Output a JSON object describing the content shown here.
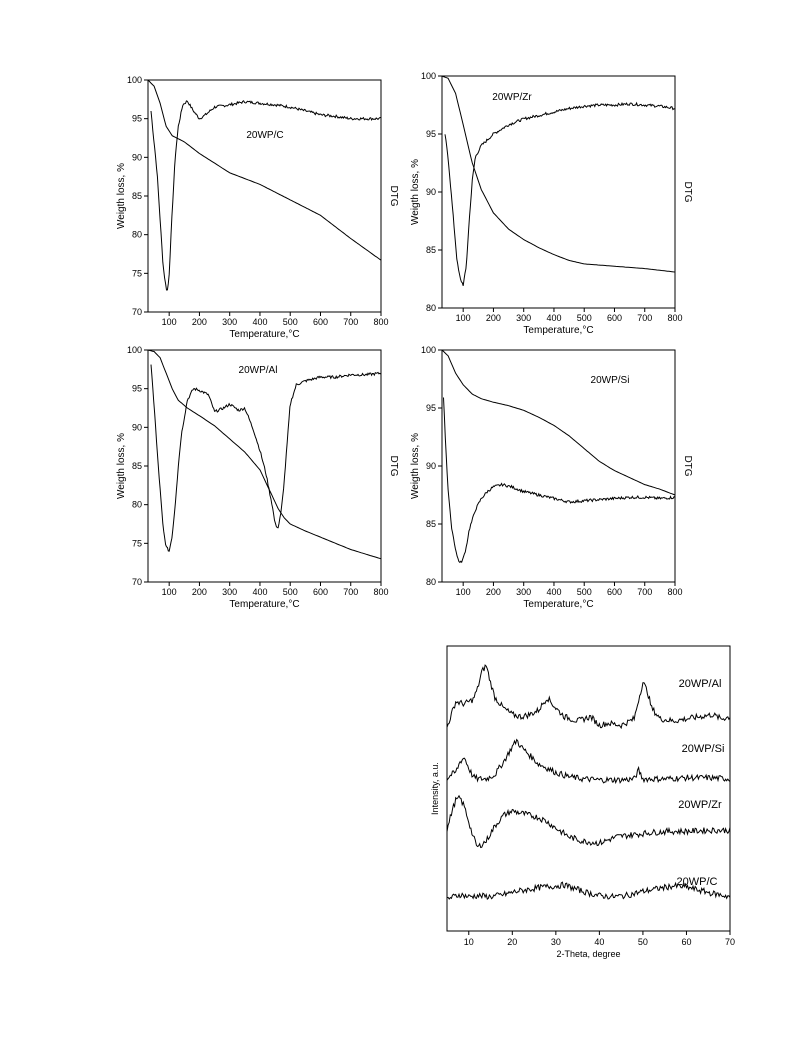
{
  "chart_data": [
    {
      "type": "line",
      "title": "20WP/C",
      "xlabel": "Temperature,°C",
      "ylabel": "Weigth loss, %",
      "y2label": "DTG",
      "xlim": [
        30,
        800
      ],
      "ylim": [
        70,
        100
      ],
      "xticks": [
        100,
        200,
        300,
        400,
        500,
        600,
        700,
        800
      ],
      "yticks": [
        70,
        75,
        80,
        85,
        90,
        95,
        100
      ],
      "series": [
        {
          "kind": "tg",
          "x": [
            30,
            50,
            70,
            90,
            110,
            150,
            200,
            300,
            400,
            500,
            600,
            700,
            800
          ],
          "y": [
            100,
            99.2,
            97,
            94,
            92.8,
            92,
            90.5,
            88,
            86.5,
            84.5,
            82.5,
            79.5,
            76.7
          ]
        },
        {
          "kind": "dtg",
          "x": [
            40,
            50,
            60,
            70,
            80,
            90,
            95,
            100,
            110,
            120,
            130,
            145,
            160,
            180,
            200,
            220,
            250,
            300,
            350,
            400,
            450,
            500,
            550,
            600,
            650,
            700,
            750,
            800
          ],
          "y": [
            96,
            92,
            88,
            82,
            76,
            73,
            72.8,
            75,
            83,
            90,
            94,
            96.8,
            97.3,
            96,
            95,
            95.5,
            96.5,
            96.8,
            97.2,
            97,
            96.8,
            96.5,
            96,
            95.5,
            95.3,
            95,
            95,
            95
          ]
        }
      ]
    },
    {
      "type": "line",
      "title": "20WP/Zr",
      "xlabel": "Temperature,°C",
      "ylabel": "Weigth loss, %",
      "y2label": "DTG",
      "xlim": [
        30,
        800
      ],
      "ylim": [
        80,
        100
      ],
      "xticks": [
        100,
        200,
        300,
        400,
        500,
        600,
        700,
        800
      ],
      "yticks": [
        80,
        85,
        90,
        95,
        100
      ],
      "series": [
        {
          "kind": "tg",
          "x": [
            30,
            50,
            75,
            100,
            130,
            160,
            200,
            250,
            300,
            350,
            400,
            450,
            500,
            600,
            700,
            800
          ],
          "y": [
            100,
            99.8,
            98.5,
            95.8,
            92.5,
            90.2,
            88.2,
            86.8,
            85.9,
            85.2,
            84.6,
            84.1,
            83.8,
            83.6,
            83.4,
            83.1
          ]
        },
        {
          "kind": "dtg",
          "x": [
            40,
            50,
            60,
            70,
            80,
            90,
            100,
            110,
            120,
            130,
            140,
            160,
            180,
            200,
            250,
            300,
            350,
            400,
            450,
            500,
            550,
            600,
            650,
            700,
            750,
            800
          ],
          "y": [
            95,
            93,
            90,
            87,
            84,
            82.5,
            82,
            83.5,
            87.5,
            91,
            93,
            94,
            94.5,
            95,
            95.8,
            96.3,
            96.6,
            96.9,
            97.2,
            97.4,
            97.5,
            97.5,
            97.6,
            97.5,
            97.4,
            97.2
          ]
        }
      ]
    },
    {
      "type": "line",
      "title": "20WP/Al",
      "xlabel": "Temperature,°C",
      "ylabel": "Weigth loss, %",
      "y2label": "DTG",
      "xlim": [
        30,
        800
      ],
      "ylim": [
        70,
        100
      ],
      "xticks": [
        100,
        200,
        300,
        400,
        500,
        600,
        700,
        800
      ],
      "yticks": [
        70,
        75,
        80,
        85,
        90,
        95,
        100
      ],
      "series": [
        {
          "kind": "tg",
          "x": [
            30,
            50,
            70,
            90,
            110,
            130,
            160,
            200,
            250,
            300,
            350,
            400,
            430,
            460,
            480,
            500,
            550,
            600,
            650,
            700,
            750,
            800
          ],
          "y": [
            100,
            99.8,
            99,
            97,
            95,
            93.5,
            92.5,
            91.5,
            90.2,
            88.5,
            86.8,
            84.5,
            82,
            79.5,
            78.3,
            77.5,
            76.6,
            75.8,
            75,
            74.2,
            73.6,
            73
          ]
        },
        {
          "kind": "dtg",
          "x": [
            40,
            50,
            60,
            70,
            80,
            90,
            100,
            110,
            120,
            130,
            140,
            160,
            180,
            200,
            230,
            250,
            280,
            300,
            330,
            350,
            380,
            400,
            420,
            440,
            450,
            460,
            470,
            480,
            490,
            500,
            520,
            550,
            600,
            650,
            700,
            750,
            800
          ],
          "y": [
            98,
            93,
            87,
            82,
            77,
            74.5,
            74,
            76,
            80,
            85,
            89,
            93.5,
            95,
            94.8,
            94.2,
            92,
            92.5,
            93,
            92.2,
            92.5,
            89.5,
            87,
            84,
            80,
            77.5,
            77,
            79,
            83,
            88,
            93,
            95.5,
            96,
            96.5,
            96.5,
            96.8,
            96.8,
            97
          ]
        }
      ]
    },
    {
      "type": "line",
      "title": "20WP/Si",
      "xlabel": "Temperature,°C",
      "ylabel": "Weigth loss, %",
      "y2label": "DTG",
      "xlim": [
        30,
        800
      ],
      "ylim": [
        80,
        100
      ],
      "xticks": [
        100,
        200,
        300,
        400,
        500,
        600,
        700,
        800
      ],
      "yticks": [
        80,
        85,
        90,
        95,
        100
      ],
      "series": [
        {
          "kind": "tg",
          "x": [
            30,
            50,
            75,
            100,
            130,
            160,
            200,
            250,
            300,
            350,
            400,
            450,
            500,
            550,
            600,
            650,
            700,
            750,
            800
          ],
          "y": [
            100,
            99.5,
            98,
            97,
            96.2,
            95.8,
            95.5,
            95.2,
            94.8,
            94.2,
            93.5,
            92.6,
            91.5,
            90.4,
            89.6,
            89,
            88.4,
            88,
            87.5
          ]
        },
        {
          "kind": "dtg",
          "x": [
            35,
            40,
            50,
            60,
            70,
            80,
            90,
            100,
            110,
            120,
            140,
            160,
            180,
            200,
            230,
            260,
            300,
            350,
            400,
            450,
            500,
            550,
            600,
            650,
            700,
            750,
            800
          ],
          "y": [
            96,
            93,
            88,
            85,
            83.5,
            82.2,
            81.6,
            82,
            83,
            84.5,
            86.2,
            87.2,
            87.8,
            88.2,
            88.4,
            88.2,
            87.8,
            87.5,
            87.2,
            86.9,
            87,
            87.1,
            87.2,
            87.3,
            87.3,
            87.2,
            87.3
          ]
        }
      ]
    },
    {
      "type": "line",
      "xlabel": "2-Theta, degree",
      "ylabel": "Intensity, a.u.",
      "xlim": [
        5,
        70
      ],
      "xticks": [
        10,
        20,
        30,
        40,
        50,
        60,
        70
      ],
      "series": [
        {
          "name": "20WP/Al",
          "x": [
            5,
            7,
            9,
            11,
            12,
            13,
            14,
            15,
            16,
            18,
            20,
            22,
            24,
            26,
            28,
            30,
            32,
            35,
            38,
            40,
            42,
            45,
            48,
            49,
            50,
            51,
            52,
            54,
            57,
            60,
            63,
            66,
            68,
            70
          ],
          "y": [
            6.9,
            8.1,
            8.0,
            8.2,
            8.7,
            9.5,
            9.8,
            9.0,
            8.3,
            7.8,
            7.5,
            7.4,
            7.5,
            7.7,
            8.3,
            7.8,
            7.4,
            7.2,
            7.4,
            7.0,
            7.1,
            7.0,
            7.3,
            8.2,
            9.0,
            8.6,
            7.8,
            7.3,
            7.2,
            7.3,
            7.4,
            7.5,
            7.3,
            7.4
          ]
        },
        {
          "name": "20WP/Si",
          "x": [
            5,
            6,
            7,
            8,
            9,
            10,
            11,
            12,
            14,
            16,
            18,
            20,
            21,
            22,
            24,
            26,
            28,
            30,
            33,
            36,
            40,
            45,
            48,
            49,
            50,
            55,
            60,
            65,
            70
          ],
          "y": [
            4.5,
            4.7,
            4.8,
            5.3,
            5.5,
            5.0,
            4.6,
            4.5,
            4.5,
            4.7,
            5.3,
            6.0,
            6.3,
            6.0,
            5.6,
            5.2,
            5.0,
            4.8,
            4.6,
            4.5,
            4.45,
            4.45,
            4.5,
            4.9,
            4.5,
            4.5,
            4.55,
            4.55,
            4.5
          ]
        },
        {
          "name": "20WP/Zr",
          "x": [
            5,
            6,
            7,
            8,
            9,
            10,
            11,
            12,
            14,
            16,
            18,
            20,
            22,
            24,
            26,
            28,
            30,
            33,
            36,
            40,
            44,
            48,
            52,
            56,
            60,
            65,
            70
          ],
          "y": [
            2.1,
            2.9,
            3.5,
            3.6,
            3.2,
            2.5,
            1.8,
            1.3,
            1.6,
            2.3,
            2.8,
            3.0,
            2.9,
            2.8,
            2.7,
            2.5,
            2.2,
            1.8,
            1.6,
            1.5,
            1.8,
            1.9,
            2.0,
            2.05,
            2.05,
            2.1,
            2.1
          ]
        },
        {
          "name": "20WP/C",
          "x": [
            5,
            8,
            10,
            12,
            15,
            18,
            21,
            24,
            27,
            30,
            32,
            34,
            37,
            40,
            43,
            46,
            50,
            54,
            57,
            60,
            63,
            66,
            70
          ],
          "y": [
            -1.1,
            -0.9,
            -1.0,
            -0.95,
            -1.0,
            -0.9,
            -0.75,
            -0.65,
            -0.55,
            -0.5,
            -0.45,
            -0.6,
            -0.8,
            -0.95,
            -1.0,
            -0.95,
            -0.75,
            -0.6,
            -0.5,
            -0.55,
            -0.7,
            -0.85,
            -1.0
          ]
        }
      ]
    }
  ]
}
